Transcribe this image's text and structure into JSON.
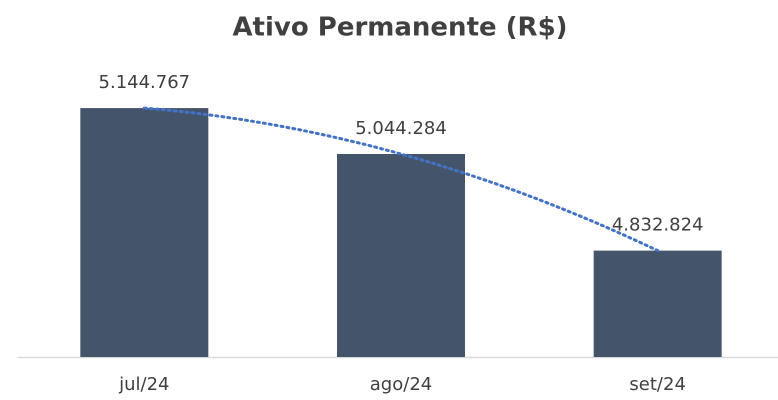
{
  "chart_data": {
    "type": "bar",
    "title": "Ativo Permanente (R$)",
    "categories": [
      "jul/24",
      "ago/24",
      "set/24"
    ],
    "values": [
      5144767,
      5044284,
      4832824
    ],
    "value_labels": [
      "5.144.767",
      "5.044.284",
      "4.832.824"
    ],
    "color": "#44546a",
    "trendline": true,
    "trendline_color": "#4472c4",
    "ylim": [
      4600000,
      5250000
    ]
  }
}
